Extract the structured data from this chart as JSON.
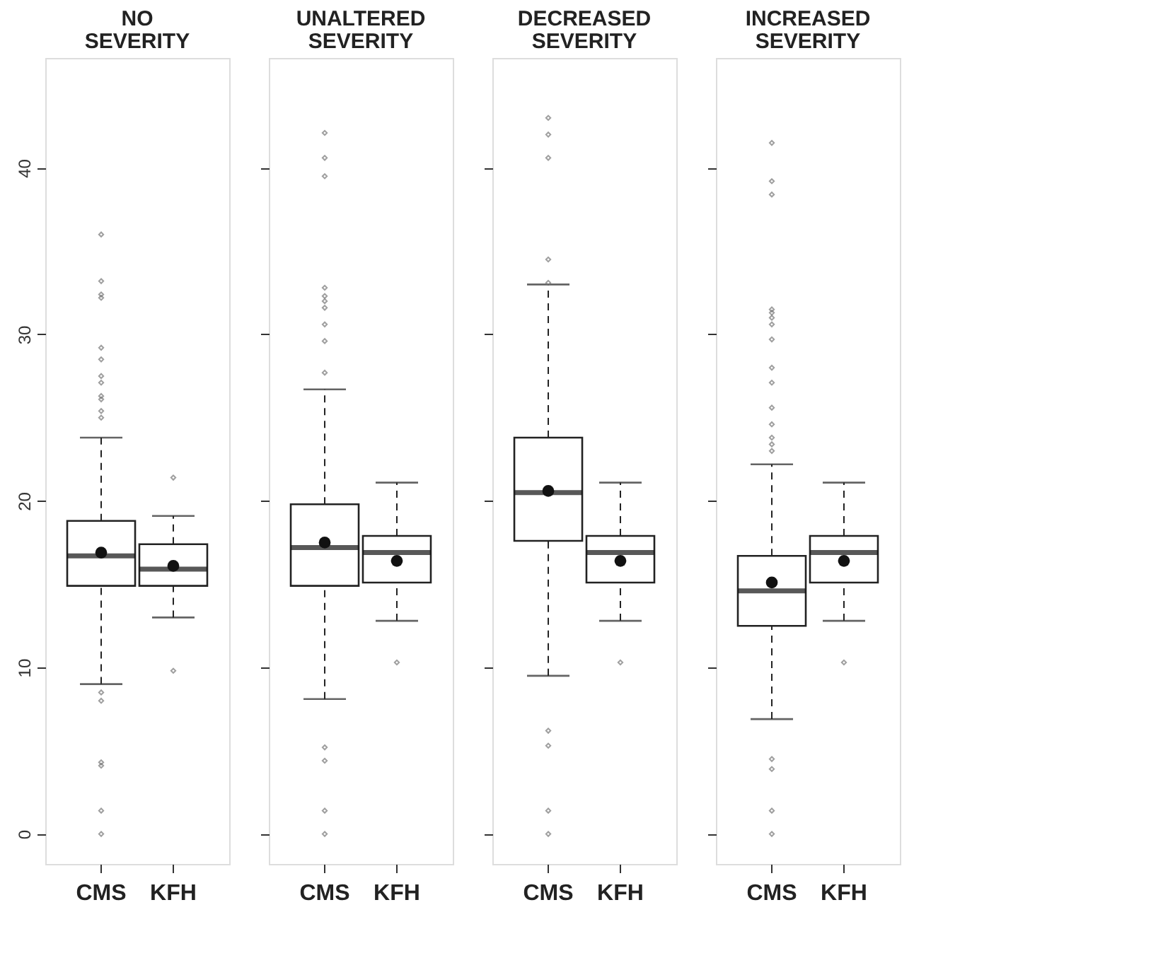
{
  "chart_data": [
    {
      "type": "box",
      "title": "NO SEVERITY",
      "categories": [
        "CMS",
        "KFH"
      ],
      "ylim": [
        -1.8,
        46.6
      ],
      "yticks": [
        0,
        10,
        20,
        30,
        40
      ],
      "boxes": [
        {
          "low": 9,
          "q1": 14.9,
          "median": 16.7,
          "q3": 18.8,
          "high": 23.8,
          "mean": 16.9,
          "outliers": [
            36,
            33.2,
            32.4,
            32.2,
            29.2,
            28.5,
            27.5,
            27.1,
            26.3,
            26.1,
            25.4,
            25,
            8.5,
            8.0,
            4.3,
            4.1,
            1.4,
            0
          ]
        },
        {
          "low": 13,
          "q1": 14.9,
          "median": 15.9,
          "q3": 17.4,
          "high": 19.1,
          "mean": 16.1,
          "outliers": [
            21.4,
            9.8
          ]
        }
      ]
    },
    {
      "type": "box",
      "title": "UNALTERED SEVERITY",
      "categories": [
        "CMS",
        "KFH"
      ],
      "ylim": [
        -1.8,
        46.6
      ],
      "yticks": [
        0,
        10,
        20,
        30,
        40
      ],
      "tick_labels": "x",
      "boxes": [
        {
          "low": 8.1,
          "q1": 14.9,
          "median": 17.2,
          "q3": 19.8,
          "high": 26.7,
          "mean": 17.5,
          "outliers": [
            42.1,
            40.6,
            39.5,
            32.8,
            32.3,
            32.0,
            31.6,
            30.6,
            29.6,
            27.7,
            5.2,
            4.4,
            1.4,
            0
          ]
        },
        {
          "low": 12.8,
          "q1": 15.1,
          "median": 16.9,
          "q3": 17.9,
          "high": 21.1,
          "mean": 16.4,
          "outliers": [
            10.3
          ]
        }
      ]
    },
    {
      "type": "box",
      "title": "DECREASED SEVERITY",
      "categories": [
        "CMS",
        "KFH"
      ],
      "ylim": [
        -1.8,
        46.6
      ],
      "yticks": [
        0,
        10,
        20,
        30,
        40
      ],
      "tick_labels": "x",
      "boxes": [
        {
          "low": 9.5,
          "q1": 17.6,
          "median": 20.5,
          "q3": 23.8,
          "high": 33.0,
          "mean": 20.6,
          "outliers": [
            43.0,
            42.0,
            40.6,
            34.5,
            33.1,
            6.2,
            5.3,
            1.4,
            0
          ]
        },
        {
          "low": 12.8,
          "q1": 15.1,
          "median": 16.9,
          "q3": 17.9,
          "high": 21.1,
          "mean": 16.4,
          "outliers": [
            10.3
          ]
        }
      ]
    },
    {
      "type": "box",
      "title": "INCREASED SEVERITY",
      "categories": [
        "CMS",
        "KFH"
      ],
      "ylim": [
        -1.8,
        46.6
      ],
      "yticks": [
        0,
        10,
        20,
        30,
        40
      ],
      "tick_labels": "x",
      "boxes": [
        {
          "low": 6.9,
          "q1": 12.5,
          "median": 14.6,
          "q3": 16.7,
          "high": 22.2,
          "mean": 15.1,
          "outliers": [
            41.5,
            39.2,
            38.4,
            31.5,
            31.3,
            31.0,
            30.6,
            29.7,
            28.0,
            27.1,
            25.6,
            24.6,
            23.8,
            23.4,
            23.0,
            4.5,
            3.9,
            1.4,
            0
          ]
        },
        {
          "low": 12.8,
          "q1": 15.1,
          "median": 16.9,
          "q3": 17.9,
          "high": 21.1,
          "mean": 16.4,
          "outliers": [
            10.3
          ]
        }
      ]
    }
  ]
}
